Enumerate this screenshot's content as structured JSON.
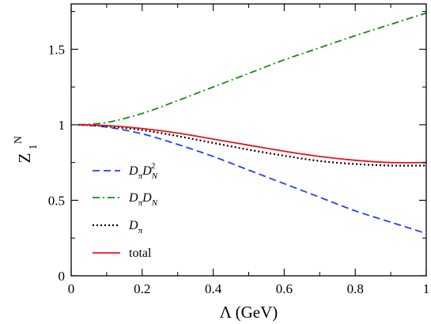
{
  "chart_data": {
    "type": "line",
    "xlabel": "Λ (GeV)",
    "ylabel": {
      "main": "Z",
      "sub": "1",
      "sup": "N"
    },
    "xlim": [
      0,
      1
    ],
    "ylim": [
      0,
      1.8
    ],
    "xticks": [
      {
        "value": 0,
        "label": "0"
      },
      {
        "value": 0.2,
        "label": "0.2"
      },
      {
        "value": 0.4,
        "label": "0.4"
      },
      {
        "value": 0.6,
        "label": "0.6"
      },
      {
        "value": 0.8,
        "label": "0.8"
      },
      {
        "value": 1,
        "label": "1"
      }
    ],
    "yticks": [
      {
        "value": 0,
        "label": "0"
      },
      {
        "value": 0.5,
        "label": "0.5"
      },
      {
        "value": 1,
        "label": "1"
      },
      {
        "value": 1.5,
        "label": "1.5"
      }
    ],
    "grid": false,
    "legend_position": "bottom-left",
    "x": [
      0.02,
      0.1,
      0.2,
      0.3,
      0.4,
      0.5,
      0.6,
      0.7,
      0.8,
      0.9,
      1.0
    ],
    "series": [
      {
        "name": "DπDN2",
        "legend": {
          "main1": "D",
          "sub1": "π",
          "main2": "D",
          "sub2": "N",
          "sup2": "2"
        },
        "color": "#1f3fff",
        "style": "dashed",
        "values": [
          1.0,
          0.985,
          0.94,
          0.87,
          0.79,
          0.7,
          0.61,
          0.52,
          0.43,
          0.355,
          0.28
        ]
      },
      {
        "name": "DπDN",
        "legend": {
          "main1": "D",
          "sub1": "π",
          "main2": "D",
          "sub2": "N",
          "sup2": ""
        },
        "color": "#138a13",
        "style": "dashdot",
        "values": [
          1.0,
          1.015,
          1.075,
          1.16,
          1.25,
          1.34,
          1.43,
          1.51,
          1.59,
          1.665,
          1.74
        ]
      },
      {
        "name": "Dπ",
        "legend": {
          "main1": "D",
          "sub1": "π",
          "main2": "",
          "sub2": "",
          "sup2": ""
        },
        "color": "#000000",
        "style": "dotted",
        "values": [
          1.0,
          0.99,
          0.965,
          0.925,
          0.88,
          0.835,
          0.795,
          0.76,
          0.74,
          0.73,
          0.73
        ]
      },
      {
        "name": "total",
        "legend": {
          "main1": "total",
          "sub1": "",
          "main2": "",
          "sub2": "",
          "sup2": ""
        },
        "color": "#e8141c",
        "style": "solid",
        "values": [
          1.0,
          0.995,
          0.975,
          0.945,
          0.905,
          0.865,
          0.825,
          0.79,
          0.765,
          0.75,
          0.75
        ]
      }
    ]
  }
}
